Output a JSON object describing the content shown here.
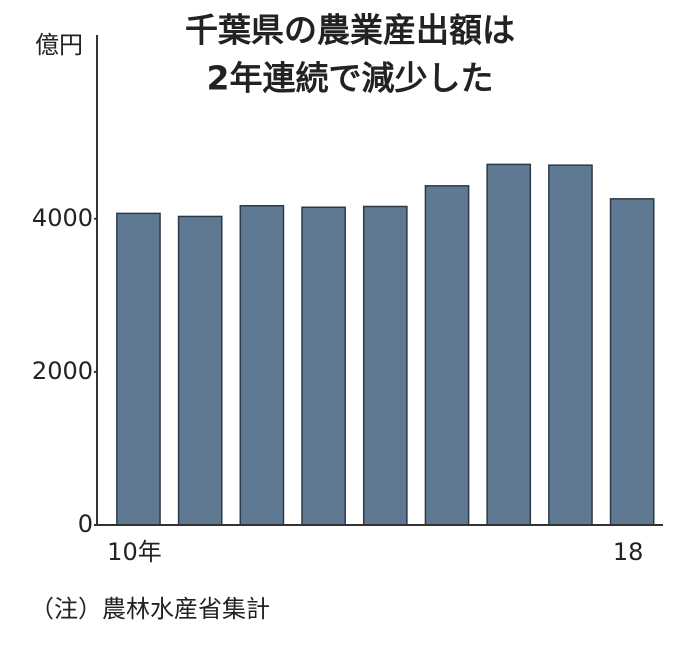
{
  "chart_data": {
    "type": "bar",
    "title": [
      "千葉県の農業産出額は",
      "2年連続で減少した"
    ],
    "y_label": "億円",
    "note": "（注）農林水産省集計",
    "categories": [
      "10年",
      null,
      null,
      null,
      null,
      null,
      null,
      null,
      "18"
    ],
    "values": [
      4070,
      4030,
      4170,
      4150,
      4160,
      4430,
      4710,
      4700,
      4260
    ],
    "color": "#5f7993",
    "ylim": [
      0,
      6400
    ],
    "yticks": [
      0,
      2000,
      4000
    ],
    "grid": false
  }
}
